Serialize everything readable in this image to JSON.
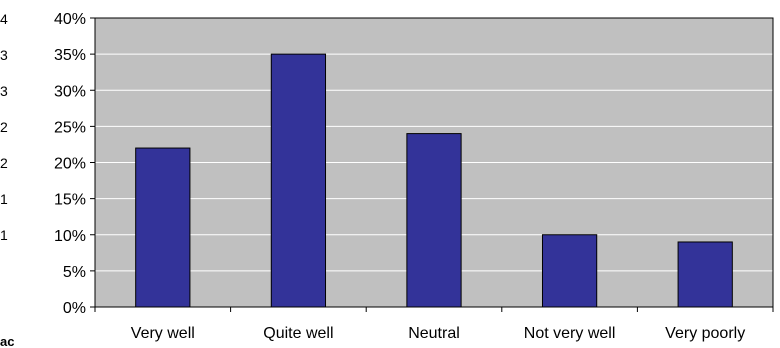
{
  "chart_data": {
    "type": "bar",
    "categories": [
      "Very well",
      "Quite well",
      "Neutral",
      "Not very well",
      "Very poorly"
    ],
    "values": [
      22,
      35,
      24,
      10,
      9
    ],
    "title": "",
    "xlabel": "",
    "ylabel": "",
    "ylim": [
      0,
      40
    ],
    "yticks": [
      0,
      5,
      10,
      15,
      20,
      25,
      30,
      35,
      40
    ],
    "ytick_labels": [
      "0%",
      "5%",
      "10%",
      "15%",
      "20%",
      "25%",
      "30%",
      "35%",
      "40%"
    ],
    "grid": true,
    "legend": "none",
    "colors": {
      "bar": "#333399",
      "plot_background": "#c0c0c0",
      "gridline": "#ffffff"
    }
  },
  "clipped_left_text": {
    "fragments": [
      "4",
      "3",
      "3",
      "2",
      "2",
      "1",
      "1"
    ],
    "bottom_fragment": "ac"
  }
}
